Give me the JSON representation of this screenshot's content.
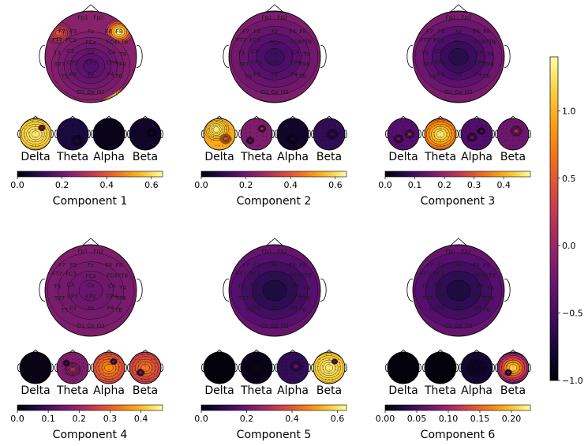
{
  "chart_data": {
    "type": "heatmap",
    "colormap": "inferno",
    "main_colorbar": {
      "ticks": [
        1.0,
        0.5,
        0.0,
        -0.5,
        -1.0
      ],
      "tick_labels": [
        "1.0",
        "0.5",
        "0.0",
        "−0.5",
        "−1.0"
      ],
      "range": [
        -1.0,
        1.4
      ]
    },
    "electrodes": [
      {
        "label": "Fp1",
        "x": -0.17,
        "y": -0.86
      },
      {
        "label": "Fp2",
        "x": 0.17,
        "y": -0.86
      },
      {
        "label": "F7",
        "x": -0.63,
        "y": -0.56
      },
      {
        "label": "F3",
        "x": -0.38,
        "y": -0.56
      },
      {
        "label": "Fz",
        "x": 0.0,
        "y": -0.56
      },
      {
        "label": "F4",
        "x": 0.39,
        "y": -0.56
      },
      {
        "label": "F8",
        "x": 0.62,
        "y": -0.56
      },
      {
        "label": "FT7",
        "x": -0.73,
        "y": -0.37
      },
      {
        "label": "FC3",
        "x": -0.43,
        "y": -0.37
      },
      {
        "label": "FCz",
        "x": 0.0,
        "y": -0.32
      },
      {
        "label": "FC4",
        "x": 0.46,
        "y": -0.33
      },
      {
        "label": "FT8",
        "x": 0.7,
        "y": -0.33
      },
      {
        "label": "T3",
        "x": -0.73,
        "y": -0.09
      },
      {
        "label": "C3",
        "x": -0.44,
        "y": -0.13
      },
      {
        "label": "Cz",
        "x": 0.0,
        "y": -0.11
      },
      {
        "label": "C4",
        "x": 0.46,
        "y": -0.1
      },
      {
        "label": "T4",
        "x": 0.7,
        "y": -0.06
      },
      {
        "label": "TP7",
        "x": -0.68,
        "y": 0.16
      },
      {
        "label": "CP3",
        "x": -0.4,
        "y": 0.12
      },
      {
        "label": "CPz",
        "x": 0.0,
        "y": 0.12
      },
      {
        "label": "CP4",
        "x": 0.46,
        "y": 0.12
      },
      {
        "label": "TP8",
        "x": 0.66,
        "y": 0.16
      },
      {
        "label": "T5",
        "x": -0.57,
        "y": 0.43
      },
      {
        "label": "P3",
        "x": -0.39,
        "y": 0.38
      },
      {
        "label": "Pz",
        "x": 0.0,
        "y": 0.39
      },
      {
        "label": "P4",
        "x": 0.43,
        "y": 0.38
      },
      {
        "label": "T6",
        "x": 0.61,
        "y": 0.42
      },
      {
        "label": "O1",
        "x": -0.22,
        "y": 0.77
      },
      {
        "label": "Oz",
        "x": 0.0,
        "y": 0.77
      },
      {
        "label": "O2",
        "x": 0.22,
        "y": 0.77
      }
    ],
    "band_labels": [
      "Delta",
      "Theta",
      "Alpha",
      "Beta"
    ],
    "components": [
      {
        "title": "Component 1",
        "colorbar": {
          "ticks": [
            "0.0",
            "0.2",
            "0.4",
            "0.6"
          ],
          "max": 0.65
        },
        "band_weights": [
          0.62,
          0.08,
          0.03,
          0.05
        ],
        "spatial_hotspots": [
          {
            "x": 0.62,
            "y": -0.55,
            "v": 1.0,
            "w": 0.1
          },
          {
            "x": 0.45,
            "y": 0.78,
            "v": 1.0,
            "w": 0.09
          },
          {
            "x": -0.7,
            "y": -0.52,
            "v": 0.6,
            "w": 0.09
          },
          {
            "x": 0.25,
            "y": -0.12,
            "v": 0.7,
            "w": 0.03
          },
          {
            "x": 0.0,
            "y": 0.2,
            "v": 0.25,
            "w": 0.3
          }
        ],
        "band_hotspots": [
          [
            {
              "x": 0.0,
              "y": 0.0,
              "v": 0.95,
              "w": 0.35
            },
            {
              "x": 0.4,
              "y": -0.4,
              "v": 0.3,
              "w": 0.05
            }
          ],
          [
            {
              "x": 0.3,
              "y": 0.4,
              "v": 0.12,
              "w": 0.1
            }
          ],
          [],
          [
            {
              "x": 0.4,
              "y": -0.1,
              "v": 0.08,
              "w": 0.08
            }
          ]
        ]
      },
      {
        "title": "Component 2",
        "colorbar": {
          "ticks": [
            "0.0",
            "0.2",
            "0.4",
            "0.6"
          ],
          "max": 0.65
        },
        "band_weights": [
          0.58,
          0.25,
          0.05,
          0.12
        ],
        "spatial_hotspots": [
          {
            "x": -0.62,
            "y": -0.55,
            "v": 1.0,
            "w": 0.12
          },
          {
            "x": 0.08,
            "y": 0.78,
            "v": 0.9,
            "w": 0.08
          },
          {
            "x": 0.3,
            "y": -0.85,
            "v": 0.55,
            "w": 0.05
          },
          {
            "x": 0.35,
            "y": 0.5,
            "v": 0.4,
            "w": 0.06
          },
          {
            "x": 0.0,
            "y": 0.0,
            "v": 0.2,
            "w": 0.4
          }
        ],
        "band_hotspots": [
          [
            {
              "x": -0.2,
              "y": -0.3,
              "v": 0.95,
              "w": 0.25
            },
            {
              "x": 0.4,
              "y": 0.3,
              "v": 0.6,
              "w": 0.1
            }
          ],
          [
            {
              "x": 0.35,
              "y": -0.35,
              "v": 0.45,
              "w": 0.06
            },
            {
              "x": -0.4,
              "y": 0.4,
              "v": 0.3,
              "w": 0.06
            }
          ],
          [
            {
              "x": 0.0,
              "y": 0.3,
              "v": 0.1,
              "w": 0.1
            }
          ],
          [
            {
              "x": 0.2,
              "y": 0.0,
              "v": 0.18,
              "w": 0.1
            }
          ]
        ]
      },
      {
        "title": "Component 3",
        "colorbar": {
          "ticks": [
            "0.0",
            "0.1",
            "0.2",
            "0.3",
            "0.4"
          ],
          "max": 0.49
        },
        "band_weights": [
          0.18,
          0.47,
          0.17,
          0.22
        ],
        "spatial_hotspots": [
          {
            "x": -0.55,
            "y": -0.6,
            "v": 1.0,
            "w": 0.12
          },
          {
            "x": 0.72,
            "y": -0.15,
            "v": 0.95,
            "w": 0.06
          },
          {
            "x": 0.3,
            "y": -0.85,
            "v": 0.45,
            "w": 0.05
          },
          {
            "x": 0.0,
            "y": 0.0,
            "v": 0.15,
            "w": 0.4
          }
        ],
        "band_hotspots": [
          [
            {
              "x": 0.4,
              "y": 0.0,
              "v": 0.4,
              "w": 0.08
            },
            {
              "x": -0.3,
              "y": 0.3,
              "v": 0.3,
              "w": 0.08
            }
          ],
          [
            {
              "x": 0.0,
              "y": 0.0,
              "v": 0.95,
              "w": 0.35
            }
          ],
          [
            {
              "x": -0.3,
              "y": 0.2,
              "v": 0.3,
              "w": 0.08
            },
            {
              "x": 0.3,
              "y": -0.2,
              "v": 0.25,
              "w": 0.06
            }
          ],
          [
            {
              "x": 0.2,
              "y": -0.2,
              "v": 0.45,
              "w": 0.1
            }
          ]
        ]
      },
      {
        "title": "Component 4",
        "colorbar": {
          "ticks": [
            "0.0",
            "0.1",
            "0.2",
            "0.3",
            "0.4"
          ],
          "max": 0.47
        },
        "band_weights": [
          0.02,
          0.25,
          0.38,
          0.35
        ],
        "spatial_hotspots": [
          {
            "x": -0.55,
            "y": -0.65,
            "v": 1.0,
            "w": 0.12
          },
          {
            "x": 0.55,
            "y": -0.65,
            "v": 0.6,
            "w": 0.08
          },
          {
            "x": -0.75,
            "y": 0.45,
            "v": 0.7,
            "w": 0.08
          },
          {
            "x": 0.6,
            "y": 0.15,
            "v": 0.55,
            "w": 0.06
          },
          {
            "x": 0.25,
            "y": -0.05,
            "v": 0.5,
            "w": 0.03
          },
          {
            "x": 0.0,
            "y": 0.0,
            "v": 0.3,
            "w": 0.5
          }
        ],
        "band_hotspots": [
          [],
          [
            {
              "x": 0.0,
              "y": 0.1,
              "v": 0.45,
              "w": 0.15
            },
            {
              "x": -0.4,
              "y": -0.3,
              "v": 0.2,
              "w": 0.05
            }
          ],
          [
            {
              "x": 0.0,
              "y": 0.0,
              "v": 0.75,
              "w": 0.4
            },
            {
              "x": 0.3,
              "y": -0.4,
              "v": 0.3,
              "w": 0.05
            }
          ],
          [
            {
              "x": 0.0,
              "y": 0.0,
              "v": 0.7,
              "w": 0.4
            },
            {
              "x": -0.3,
              "y": 0.3,
              "v": 0.35,
              "w": 0.06
            }
          ]
        ]
      },
      {
        "title": "Component 5",
        "colorbar": {
          "ticks": [
            "0.0",
            "0.2",
            "0.4",
            "0.6"
          ],
          "max": 0.64
        },
        "band_weights": [
          0.01,
          0.03,
          0.12,
          0.62
        ],
        "spatial_hotspots": [
          {
            "x": -0.58,
            "y": -0.52,
            "v": 1.0,
            "w": 0.05
          },
          {
            "x": 0.0,
            "y": 0.0,
            "v": 0.12,
            "w": 0.5
          }
        ],
        "band_hotspots": [
          [],
          [
            {
              "x": 0.0,
              "y": 0.0,
              "v": 0.05,
              "w": 0.2
            }
          ],
          [
            {
              "x": 0.2,
              "y": -0.1,
              "v": 0.3,
              "w": 0.1
            }
          ],
          [
            {
              "x": 0.0,
              "y": 0.0,
              "v": 0.95,
              "w": 0.35
            },
            {
              "x": 0.35,
              "y": -0.4,
              "v": 0.3,
              "w": 0.04
            }
          ]
        ]
      },
      {
        "title": "Component 6",
        "colorbar": {
          "ticks": [
            "0.00",
            "0.05",
            "0.10",
            "0.15",
            "0.20"
          ],
          "max": 0.23
        },
        "band_weights": [
          0.01,
          0.01,
          0.06,
          0.22
        ],
        "spatial_hotspots": [
          {
            "x": -0.58,
            "y": -0.55,
            "v": 1.0,
            "w": 0.07
          },
          {
            "x": -0.72,
            "y": 0.45,
            "v": 0.9,
            "w": 0.06
          },
          {
            "x": 0.15,
            "y": 0.05,
            "v": 0.05,
            "w": 0.02
          },
          {
            "x": 0.0,
            "y": 0.0,
            "v": 0.12,
            "w": 0.5
          }
        ],
        "band_hotspots": [
          [],
          [],
          [
            {
              "x": 0.0,
              "y": 0.0,
              "v": 0.06,
              "w": 0.2
            }
          ],
          [
            {
              "x": 0.0,
              "y": 0.0,
              "v": 0.9,
              "w": 0.35
            },
            {
              "x": -0.3,
              "y": 0.3,
              "v": 0.3,
              "w": 0.05
            }
          ]
        ]
      }
    ]
  }
}
